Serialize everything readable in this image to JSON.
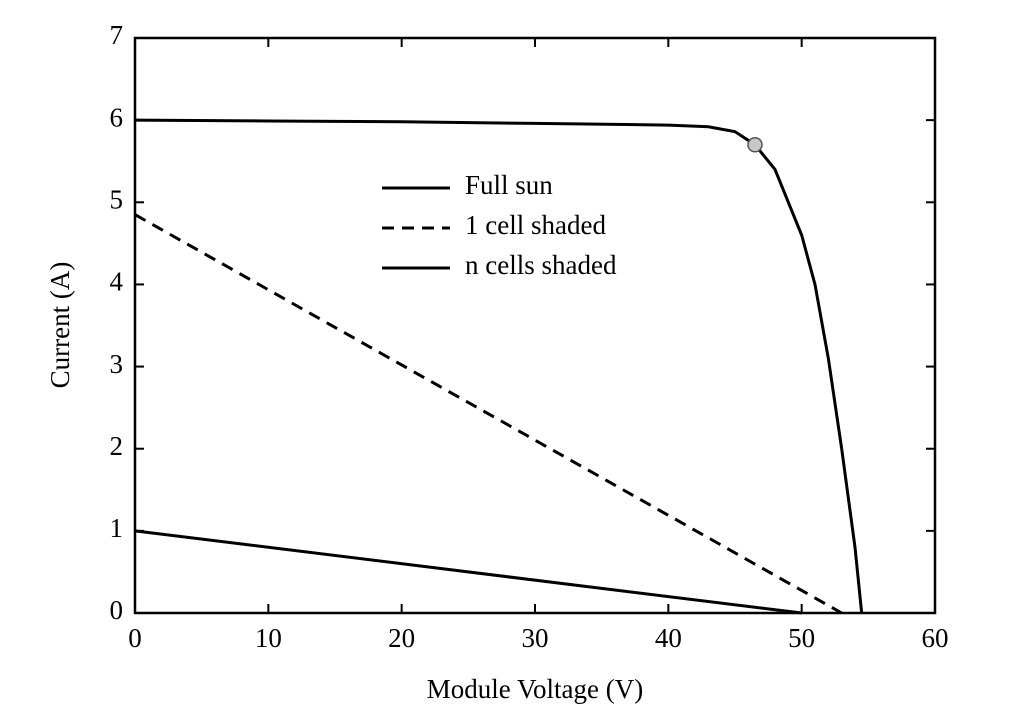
{
  "chart_data": {
    "type": "line",
    "xlabel": "Module Voltage (V)",
    "ylabel": "Current (A)",
    "xlim": [
      0,
      60
    ],
    "ylim": [
      0,
      7
    ],
    "xticks": [
      0,
      10,
      20,
      30,
      40,
      50,
      60
    ],
    "yticks": [
      0,
      1,
      2,
      3,
      4,
      5,
      6,
      7
    ],
    "series": [
      {
        "name": "Full sun",
        "color": "#000000",
        "linestyle": "solid",
        "x": [
          0,
          10,
          20,
          30,
          40,
          43,
          45,
          46.5,
          48,
          50,
          51,
          52,
          53,
          54,
          54.5
        ],
        "y": [
          6,
          5.99,
          5.98,
          5.96,
          5.94,
          5.92,
          5.86,
          5.7,
          5.4,
          4.6,
          4.0,
          3.1,
          2.0,
          0.8,
          0
        ]
      },
      {
        "name": "1 cell shaded",
        "color": "#000000",
        "linestyle": "dashed",
        "x": [
          0,
          53
        ],
        "y": [
          4.85,
          0
        ]
      },
      {
        "name": "n cells shaded",
        "color": "#000000",
        "linestyle": "solid",
        "x": [
          0,
          50
        ],
        "y": [
          1,
          0
        ]
      }
    ],
    "marker": {
      "x": 46.5,
      "y": 5.7,
      "color": "#c8c8c8"
    }
  }
}
